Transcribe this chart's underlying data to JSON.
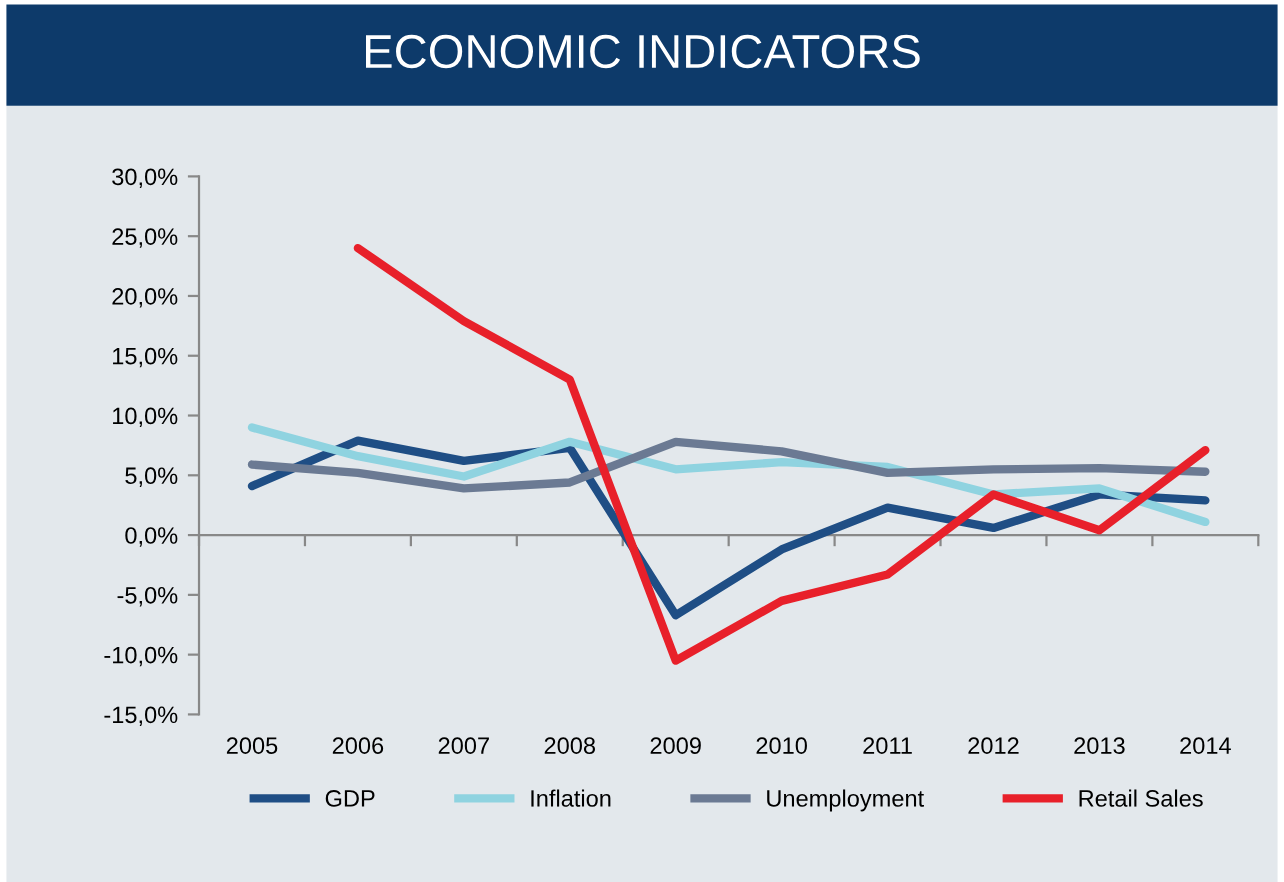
{
  "chart_data": {
    "type": "line",
    "title": "ECONOMIC INDICATORS",
    "categories": [
      "2005",
      "2006",
      "2007",
      "2008",
      "2009",
      "2010",
      "2011",
      "2012",
      "2013",
      "2014"
    ],
    "series": [
      {
        "name": "GDP",
        "color": "#1f4e85",
        "values": [
          4.1,
          7.9,
          6.2,
          7.3,
          -6.7,
          -1.2,
          2.3,
          0.6,
          3.4,
          2.9
        ]
      },
      {
        "name": "Inflation",
        "color": "#8fd3e0",
        "values": [
          9.0,
          6.6,
          4.9,
          7.8,
          5.5,
          6.1,
          5.7,
          3.4,
          3.9,
          1.1
        ]
      },
      {
        "name": "Unemployment",
        "color": "#6b7a93",
        "values": [
          5.9,
          5.2,
          3.9,
          4.4,
          7.8,
          7.0,
          5.2,
          5.5,
          5.6,
          5.3
        ]
      },
      {
        "name": "Retail Sales",
        "color": "#e8202a",
        "values": [
          null,
          24.0,
          17.9,
          13.0,
          -10.5,
          -5.5,
          -3.3,
          3.4,
          0.4,
          7.1
        ]
      }
    ],
    "ylim": [
      -15,
      30
    ],
    "yticks": [
      {
        "value": -15,
        "label": "-15,0%"
      },
      {
        "value": -10,
        "label": "-10,0%"
      },
      {
        "value": -5,
        "label": "-5,0%"
      },
      {
        "value": 0,
        "label": "0,0%"
      },
      {
        "value": 5,
        "label": "5,0%"
      },
      {
        "value": 10,
        "label": "10,0%"
      },
      {
        "value": 15,
        "label": "15,0%"
      },
      {
        "value": 20,
        "label": "20,0%"
      },
      {
        "value": 25,
        "label": "25,0%"
      },
      {
        "value": 30,
        "label": "30,0%"
      }
    ],
    "legend": "bottom",
    "marker": "none",
    "line_style": "solid"
  }
}
